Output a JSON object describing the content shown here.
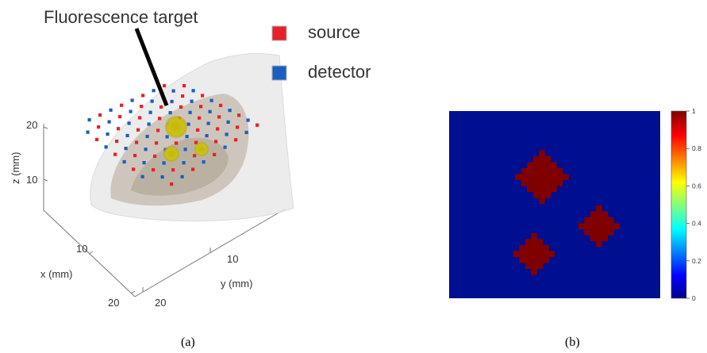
{
  "panel_a": {
    "annotation": "Fluorescence target",
    "legend": [
      {
        "label": "source",
        "color": "#e8202a"
      },
      {
        "label": "detector",
        "color": "#1a5fc0"
      }
    ],
    "axes": {
      "z_label": "z (mm)",
      "x_label": "x (mm)",
      "y_label": "y (mm)",
      "z_ticks": [
        "20",
        "10"
      ],
      "x_ticks": [
        "10",
        "20"
      ],
      "y_ticks": [
        "10",
        "20"
      ]
    },
    "caption": "(a)"
  },
  "panel_b": {
    "background_color": "#000f8f",
    "target_color": "#800000",
    "colorbar": {
      "ticks": [
        "1",
        "0.8",
        "0.6",
        "0.4",
        "0.2",
        "0"
      ],
      "min": 0,
      "max": 1
    },
    "caption": "(b)"
  }
}
